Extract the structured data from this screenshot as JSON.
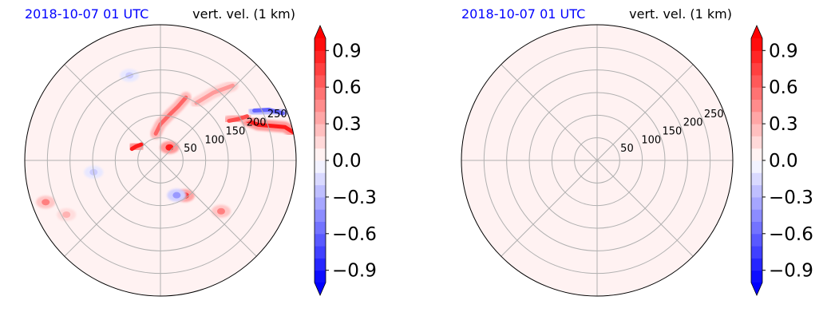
{
  "chart_data": [
    {
      "type": "heatmap",
      "projection": "polar",
      "title_left": "2018-10-07 01 UTC",
      "title_right": "vert. vel. (1 km)",
      "title_left_color": "#0000ff",
      "radial_ticks": [
        "50",
        "100",
        "150",
        "200",
        "250"
      ],
      "radial_tick_values": [
        50,
        100,
        150,
        200,
        250
      ],
      "rlim": [
        0,
        300
      ],
      "angular_gridlines_deg": [
        0,
        45,
        90,
        135,
        180,
        225,
        270,
        315
      ],
      "grid": true,
      "background_value": 0.05,
      "features": [
        {
          "kind": "band",
          "value": 0.9,
          "points": [
            [
              210,
              25
            ],
            [
              230,
              20
            ],
            [
              260,
              17
            ],
            [
              285,
              15
            ],
            [
              300,
              12
            ]
          ]
        },
        {
          "kind": "band",
          "value": 0.7,
          "points": [
            [
              175,
              30
            ],
            [
              195,
              28
            ],
            [
              215,
              27
            ]
          ]
        },
        {
          "kind": "band",
          "value": -0.6,
          "points": [
            [
              235,
              28
            ],
            [
              265,
              25
            ],
            [
              290,
              21
            ]
          ]
        },
        {
          "kind": "band",
          "value": 0.6,
          "points": [
            [
              60,
              100
            ],
            [
              80,
              90
            ],
            [
              105,
              78
            ],
            [
              125,
              72
            ],
            [
              150,
              68
            ]
          ]
        },
        {
          "kind": "band",
          "value": 0.9,
          "points": [
            [
              55,
              140
            ],
            [
              62,
              150
            ],
            [
              68,
              158
            ]
          ]
        },
        {
          "kind": "band",
          "value": 0.4,
          "points": [
            [
              150,
              58
            ],
            [
              190,
              52
            ],
            [
              230,
              46
            ]
          ]
        },
        {
          "kind": "blob",
          "value": 0.9,
          "r": 35,
          "theta": 55
        },
        {
          "kind": "blob",
          "value": 0.8,
          "r": 95,
          "theta": -55
        },
        {
          "kind": "blob",
          "value": 0.5,
          "r": 175,
          "theta": -40
        },
        {
          "kind": "blob",
          "value": -0.4,
          "r": 85,
          "theta": -65
        },
        {
          "kind": "blob",
          "value": 0.5,
          "r": 270,
          "theta": -160
        },
        {
          "kind": "blob",
          "value": 0.3,
          "r": 240,
          "theta": -150
        },
        {
          "kind": "blob",
          "value": -0.2,
          "r": 150,
          "theta": -170
        },
        {
          "kind": "blob",
          "value": -0.2,
          "r": 200,
          "theta": 110
        }
      ]
    },
    {
      "type": "heatmap",
      "projection": "polar",
      "title_left": "2018-10-07 01 UTC",
      "title_right": "vert. vel. (1 km)",
      "title_left_color": "#0000ff",
      "radial_ticks": [
        "50",
        "100",
        "150",
        "200",
        "250"
      ],
      "radial_tick_values": [
        50,
        100,
        150,
        200,
        250
      ],
      "rlim": [
        0,
        300
      ],
      "angular_gridlines_deg": [
        0,
        45,
        90,
        135,
        180,
        225,
        270,
        315
      ],
      "grid": true,
      "background_value": 0.05,
      "features": []
    }
  ],
  "colorbar": {
    "ticks": [
      "0.9",
      "0.6",
      "0.3",
      "0.0",
      "−0.3",
      "−0.6",
      "−0.9"
    ],
    "tick_values": [
      0.9,
      0.6,
      0.3,
      0.0,
      -0.3,
      -0.6,
      -0.9
    ],
    "range": [
      -1.0,
      1.0
    ],
    "colormap": "bwr",
    "extend": "both",
    "min_color": "#0000ff",
    "max_color": "#ff0000",
    "mid_color": "#ffffff"
  }
}
